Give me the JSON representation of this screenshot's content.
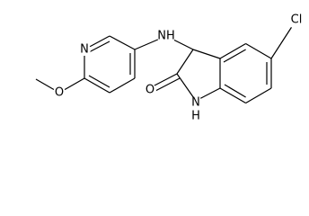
{
  "atoms": {
    "chlorine": "Cl",
    "amine": "NH",
    "pyridine_nitrogen": "N",
    "methoxy_oxygen": "O",
    "carbonyl_oxygen": "O",
    "lactam_nitrogen": "N",
    "lactam_hydrogen": "H"
  }
}
